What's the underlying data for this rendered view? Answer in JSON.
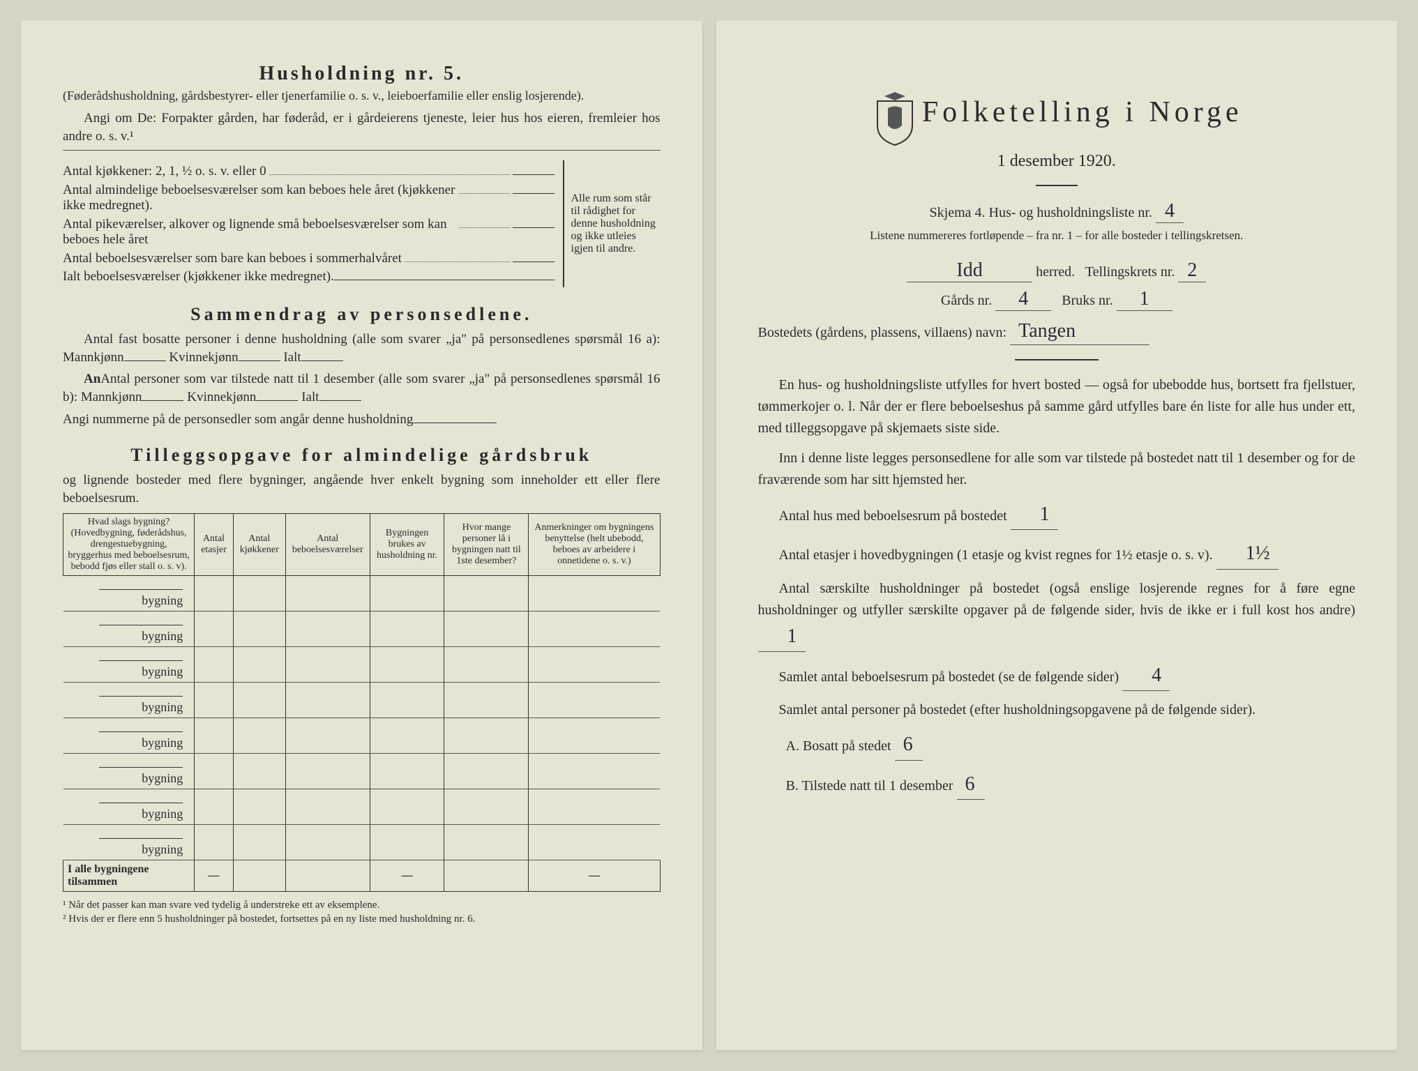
{
  "left": {
    "h5_title": "Husholdning nr. 5.",
    "h5_note": "(Føderådshusholdning, gårdsbestyrer- eller tjenerfamilie o. s. v., leieboerfamilie eller enslig losjerende).",
    "h5_instruction": "Angi om De: Forpakter gården, har føderåd, er i gårdeierens tjeneste, leier hus hos eieren, fremleier hos andre o. s. v.¹",
    "kitchens_label": "Antal kjøkkener: 2, 1, ½ o. s. v. eller 0",
    "rooms_a": "Antal almindelige beboelsesværelser som kan beboes hele året (kjøkkener ikke medregnet).",
    "rooms_b": "Antal pikeværelser, alkover og lignende små beboelsesværelser som kan beboes hele året",
    "rooms_c": "Antal beboelsesværelser som bare kan beboes i sommerhalvåret",
    "rooms_total": "Ialt beboelsesværelser (kjøkkener ikke medregnet).",
    "bracket_text": "Alle rum som står til rådighet for denne husholdning og ikke utleies igjen til andre.",
    "summary_title": "Sammendrag av personsedlene.",
    "summary_p1": "Antal fast bosatte personer i denne husholdning (alle som svarer „ja\" på personsedlenes spørsmål 16 a): Mannkjønn",
    "summary_kvinne": "Kvinnekjønn",
    "summary_ialt": "Ialt",
    "summary_p2": "Antal personer som var tilstede natt til 1 desember (alle som svarer „ja\" på personsedlenes spørsmål 16 b): Mannkjønn",
    "summary_p3": "Angi nummerne på de personsedler som angår denne husholdning",
    "tillegg_title": "Tilleggsopgave for almindelige gårdsbruk",
    "tillegg_sub": "og lignende bosteder med flere bygninger, angående hver enkelt bygning som inneholder ett eller flere beboelsesrum.",
    "table": {
      "columns": [
        "Hvad slags bygning?\n(Hovedbygning, føderådshus, drengestuebygning, bryggerhus med beboelsesrum, bebodd fjøs eller stall o. s. v).",
        "Antal etasjer",
        "Antal kjøkkener",
        "Antal beboelsesværelser",
        "Bygningen brukes av husholdning nr.",
        "Hvor mange personer lå i bygningen natt til 1ste desember?",
        "Anmerkninger om bygningens benyttelse (helt ubebodd, beboes av arbeidere i onnetidene o. s. v.)"
      ],
      "row_label": "bygning",
      "row_count": 8,
      "total_label": "I alle bygningene tilsammen"
    },
    "footnote1": "¹ Når det passer kan man svare ved tydelig å understreke ett av eksemplene.",
    "footnote2": "² Hvis der er flere enn 5 husholdninger på bostedet, fortsettes på en ny liste med husholdning nr. 6."
  },
  "right": {
    "title": "Folketelling i Norge",
    "date": "1 desember 1920.",
    "skjema_line": "Skjema 4. Hus- og husholdningsliste nr.",
    "liste_nr": "4",
    "nummer_note": "Listene nummereres fortløpende – fra nr. 1 – for alle bosteder i tellingskretsen.",
    "herred_value": "Idd",
    "herred_label": "herred.",
    "krets_label": "Tellingskrets nr.",
    "krets_value": "2",
    "gards_label": "Gårds nr.",
    "gards_value": "4",
    "bruks_label": "Bruks nr.",
    "bruks_value": "1",
    "bosted_label": "Bostedets (gårdens, plassens, villaens) navn:",
    "bosted_value": "Tangen",
    "para1": "En hus- og husholdningsliste utfylles for hvert bosted — også for ubebodde hus, bortsett fra fjellstuer, tømmerkojer o. l. Når der er flere beboelseshus på samme gård utfylles bare én liste for alle hus under ett, med tilleggsopgave på skjemaets siste side.",
    "para2": "Inn i denne liste legges personsedlene for alle som var tilstede på bostedet natt til 1 desember og for de fraværende som har sitt hjemsted her.",
    "antal_hus_label": "Antal hus med beboelsesrum på bostedet",
    "antal_hus_value": "1",
    "etasjer_label": "Antal etasjer i hovedbygningen (1 etasje og kvist regnes for 1½ etasje o. s. v).",
    "etasjer_value": "1½",
    "husholdninger_label": "Antal særskilte husholdninger på bostedet (også enslige losjerende regnes for å føre egne husholdninger og utfyller særskilte opgaver på de følgende sider, hvis de ikke er i full kost hos andre)",
    "husholdninger_value": "1",
    "samlet_rum_label": "Samlet antal beboelsesrum på bostedet (se de følgende sider)",
    "samlet_rum_value": "4",
    "samlet_pers_label": "Samlet antal personer på bostedet (efter husholdningsopgavene på de følgende sider).",
    "a_label": "A. Bosatt på stedet",
    "a_value": "6",
    "b_label": "B. Tilstede natt til 1 desember",
    "b_value": "6"
  },
  "colors": {
    "paper": "#e8e4d4",
    "ink": "#2a2a2a",
    "pencil": "#2a2a3a"
  }
}
